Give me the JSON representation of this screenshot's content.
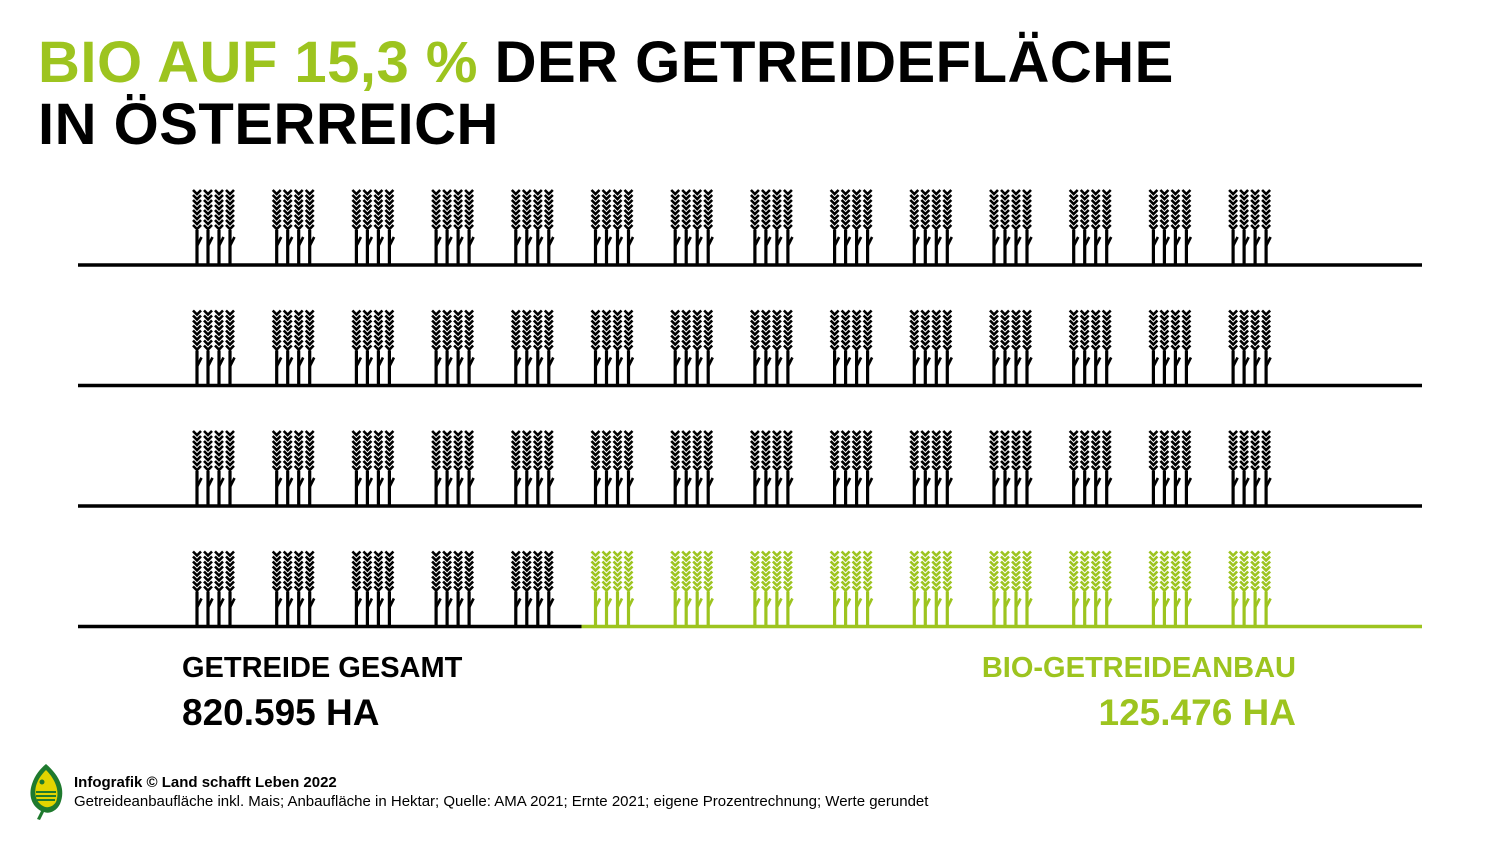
{
  "title": {
    "highlight": "BIO AUF 15,3 %",
    "rest": " DER GETREIDEFLÄCHE",
    "line2": "IN ÖSTERREICH"
  },
  "labels": {
    "total_label": "GETREIDE GESAMT",
    "total_value": "820.595 HA",
    "bio_label": "BIO-GETREIDEANBAU",
    "bio_value": "125.476 HA"
  },
  "footer": {
    "credit": "Infografik © Land schafft Leben 2022",
    "note": "Getreideanbaufläche inkl. Mais; Anbaufläche in Hektar; Quelle: AMA 2021; Ernte 2021; eigene Prozentrechnung; Werte gerundet"
  },
  "colors": {
    "conventional": "#000000",
    "bio": "#9dc41f"
  },
  "chart_data": {
    "type": "pictogram",
    "title": "BIO AUF 15,3 % DER GETREIDEFLÄCHE IN ÖSTERREICH",
    "rows": 4,
    "groups_per_row": 14,
    "stalks_per_group": 4,
    "bio_groups": 9,
    "series": [
      {
        "name": "GETREIDE GESAMT",
        "value": 820595,
        "unit": "ha"
      },
      {
        "name": "BIO-GETREIDEANBAU",
        "value": 125476,
        "unit": "ha"
      }
    ],
    "bio_share_percent": 15.3
  }
}
